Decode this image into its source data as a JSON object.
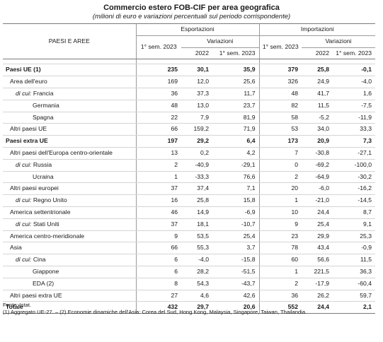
{
  "title": "Commercio estero FOB-CIF per area geografica",
  "subtitle": "(milioni di euro e variazioni percentuali sul periodo corrispondente)",
  "headers": {
    "area": "PAESI E AREE",
    "exports": "Esportazioni",
    "imports": "Importazioni",
    "sem": "1° sem. 2023",
    "variations": "Variazioni",
    "y2022": "2022",
    "sem_short": "1° sem. 2023"
  },
  "rows": [
    {
      "label": "Paesi UE (1)",
      "prefix": "",
      "indent": 0,
      "bold": true,
      "v": [
        "235",
        "30,1",
        "35,9",
        "379",
        "25,8",
        "-0,1"
      ]
    },
    {
      "label": "Area dell'euro",
      "prefix": "",
      "indent": 1,
      "bold": false,
      "v": [
        "169",
        "12,0",
        "25,6",
        "326",
        "24,9",
        "-4,0"
      ]
    },
    {
      "label": "Francia",
      "prefix": "di cui:",
      "indent": 2,
      "bold": false,
      "v": [
        "36",
        "37,3",
        "11,7",
        "48",
        "41,7",
        "1,6"
      ]
    },
    {
      "label": "Germania",
      "prefix": "",
      "indent": 3,
      "bold": false,
      "v": [
        "48",
        "13,0",
        "23,7",
        "82",
        "11,5",
        "-7,5"
      ]
    },
    {
      "label": "Spagna",
      "prefix": "",
      "indent": 3,
      "bold": false,
      "v": [
        "22",
        "7,9",
        "81,9",
        "58",
        "-5,2",
        "-11,9"
      ]
    },
    {
      "label": "Altri paesi UE",
      "prefix": "",
      "indent": 1,
      "bold": false,
      "v": [
        "66",
        "159,2",
        "71,9",
        "53",
        "34,0",
        "33,3"
      ]
    },
    {
      "label": "Paesi extra UE",
      "prefix": "",
      "indent": 0,
      "bold": true,
      "v": [
        "197",
        "29,2",
        "6,4",
        "173",
        "20,9",
        "7,3"
      ]
    },
    {
      "label": "Altri paesi dell'Europa centro-orientale",
      "prefix": "",
      "indent": 1,
      "bold": false,
      "v": [
        "13",
        "0,2",
        "4,2",
        "7",
        "-30,8",
        "-27,1"
      ]
    },
    {
      "label": "Russia",
      "prefix": "di cui:",
      "indent": 2,
      "bold": false,
      "v": [
        "2",
        "-40,9",
        "-29,1",
        "0",
        "-69,2",
        "-100,0"
      ]
    },
    {
      "label": "Ucraina",
      "prefix": "",
      "indent": 3,
      "bold": false,
      "v": [
        "1",
        "-33,3",
        "76,6",
        "2",
        "-64,9",
        "-30,2"
      ]
    },
    {
      "label": "Altri paesi europei",
      "prefix": "",
      "indent": 1,
      "bold": false,
      "v": [
        "37",
        "37,4",
        "7,1",
        "20",
        "-6,0",
        "-16,2"
      ]
    },
    {
      "label": "Regno Unito",
      "prefix": "di cui:",
      "indent": 2,
      "bold": false,
      "v": [
        "16",
        "25,8",
        "15,8",
        "1",
        "-21,0",
        "-14,5"
      ]
    },
    {
      "label": "America settentrionale",
      "prefix": "",
      "indent": 1,
      "bold": false,
      "v": [
        "46",
        "14,9",
        "-6,9",
        "10",
        "24,4",
        "8,7"
      ]
    },
    {
      "label": "Stati Uniti",
      "prefix": "di cui:",
      "indent": 2,
      "bold": false,
      "v": [
        "37",
        "18,1",
        "-10,7",
        "9",
        "25,4",
        "9,1"
      ]
    },
    {
      "label": "America centro-meridionale",
      "prefix": "",
      "indent": 1,
      "bold": false,
      "v": [
        "9",
        "53,5",
        "25,4",
        "23",
        "29,9",
        "25,3"
      ]
    },
    {
      "label": "Asia",
      "prefix": "",
      "indent": 1,
      "bold": false,
      "v": [
        "66",
        "55,3",
        "3,7",
        "78",
        "43,4",
        "-0,9"
      ]
    },
    {
      "label": "Cina",
      "prefix": "di cui:",
      "indent": 2,
      "bold": false,
      "v": [
        "6",
        "-4,0",
        "-15,8",
        "60",
        "56,6",
        "11,5"
      ]
    },
    {
      "label": "Giappone",
      "prefix": "",
      "indent": 3,
      "bold": false,
      "v": [
        "6",
        "28,2",
        "-51,5",
        "1",
        "221,5",
        "36,3"
      ]
    },
    {
      "label": "EDA (2)",
      "prefix": "",
      "indent": 3,
      "bold": false,
      "v": [
        "8",
        "54,3",
        "-43,7",
        "2",
        "-17,9",
        "-60,4"
      ]
    },
    {
      "label": "Altri paesi extra UE",
      "prefix": "",
      "indent": 1,
      "bold": false,
      "v": [
        "27",
        "4,6",
        "42,6",
        "36",
        "26,2",
        "59,7"
      ]
    },
    {
      "label": "Totale",
      "prefix": "",
      "indent": 0,
      "bold": true,
      "v": [
        "432",
        "29,7",
        "20,6",
        "552",
        "24,4",
        "2,1"
      ]
    }
  ],
  "notes": {
    "source": "Fonte: Istat.",
    "note": "(1) Aggregato UE-27. – (2) Economie dinamiche dell'Asia: Corea del Sud, Hong Kong, Malaysia, Singapore, Taiwan, Thailandia."
  }
}
